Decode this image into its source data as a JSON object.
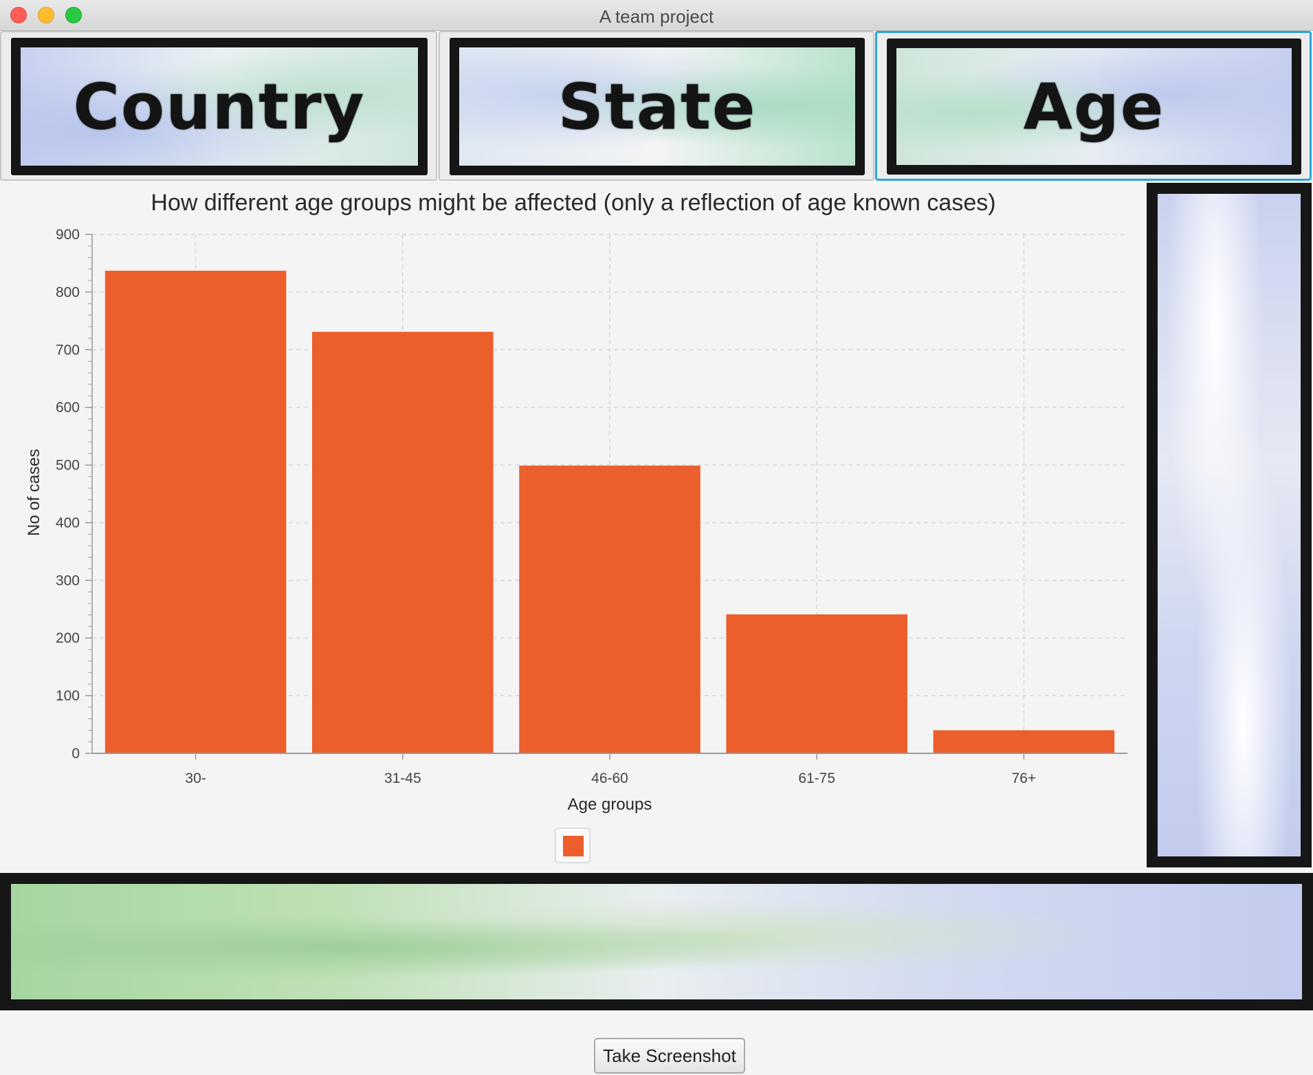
{
  "window": {
    "title": "A team project"
  },
  "tabs": [
    {
      "label": "Country",
      "selected": false
    },
    {
      "label": "State",
      "selected": false
    },
    {
      "label": "Age",
      "selected": true
    }
  ],
  "colors": {
    "bar": "#ec5e2b",
    "selection": "#2aa5d9"
  },
  "chart_data": {
    "type": "bar",
    "title": "How different age groups might be affected (only a reflection of age known cases)",
    "xlabel": "Age groups",
    "ylabel": "No of cases",
    "categories": [
      "30-",
      "31-45",
      "46-60",
      "61-75",
      "76+"
    ],
    "values": [
      837,
      731,
      499,
      241,
      40
    ],
    "ylim": [
      0,
      900
    ],
    "yticks": [
      "0",
      "100",
      "200",
      "300",
      "400",
      "500",
      "600",
      "700",
      "800",
      "900"
    ],
    "grid": true,
    "legend": "bottom-center"
  },
  "footer": {
    "screenshot_label": "Take Screenshot"
  }
}
